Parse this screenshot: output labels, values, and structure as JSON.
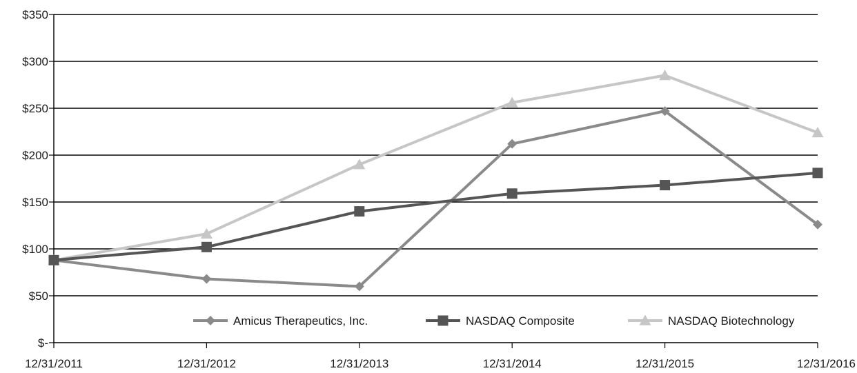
{
  "chart_data": {
    "type": "line",
    "title": "",
    "xlabel": "",
    "ylabel": "",
    "categories": [
      "12/31/2011",
      "12/31/2012",
      "12/31/2013",
      "12/31/2014",
      "12/31/2015",
      "12/31/2016"
    ],
    "y_ticks": [
      "$-",
      "$50",
      "$100",
      "$150",
      "$200",
      "$250",
      "$300",
      "$350"
    ],
    "ylim": [
      0,
      350
    ],
    "grid": true,
    "legend_position": "bottom-right",
    "series": [
      {
        "name": "Amicus Therapeutics, Inc.",
        "marker": "diamond",
        "color": "#8a8a8a",
        "values": [
          88,
          68,
          60,
          212,
          247,
          126
        ]
      },
      {
        "name": "NASDAQ Composite",
        "marker": "square",
        "color": "#555555",
        "values": [
          88,
          102,
          140,
          159,
          168,
          181
        ]
      },
      {
        "name": "NASDAQ Biotechnology",
        "marker": "triangle",
        "color": "#c6c6c6",
        "values": [
          88,
          116,
          190,
          256,
          285,
          224
        ]
      }
    ]
  }
}
